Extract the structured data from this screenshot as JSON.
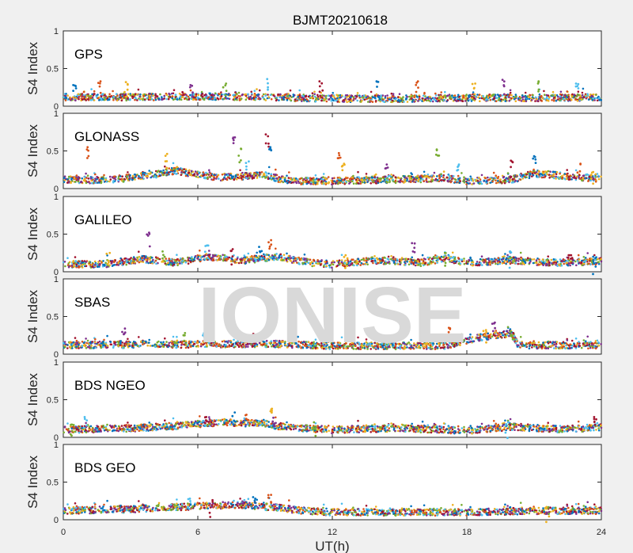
{
  "chart_data": {
    "type": "scatter",
    "title": "BJMT20210618",
    "xlabel": "UT(h)",
    "ylabel": "S4 Index",
    "xlim": [
      0,
      24
    ],
    "ylim": [
      0,
      1
    ],
    "xticks": [
      "0",
      "6",
      "12",
      "18",
      "24"
    ],
    "yticks": [
      "0",
      "0.5",
      "1"
    ],
    "watermark": "IONISE",
    "series_colors": [
      "#0072BD",
      "#D95319",
      "#EDB120",
      "#7E2F8E",
      "#77AC30",
      "#4DBEEE",
      "#A2142F"
    ],
    "panels": [
      {
        "name": "GPS",
        "baseline": [
          [
            0,
            0.12
          ],
          [
            3,
            0.12
          ],
          [
            6,
            0.13
          ],
          [
            9,
            0.12
          ],
          [
            12,
            0.1
          ],
          [
            15,
            0.1
          ],
          [
            18,
            0.11
          ],
          [
            21,
            0.11
          ],
          [
            24,
            0.12
          ]
        ],
        "peaks": [
          [
            0.5,
            0.28
          ],
          [
            1.6,
            0.33
          ],
          [
            2.8,
            0.32
          ],
          [
            5.7,
            0.28
          ],
          [
            7.2,
            0.3
          ],
          [
            9.1,
            0.36
          ],
          [
            11.5,
            0.33
          ],
          [
            14.0,
            0.33
          ],
          [
            15.8,
            0.33
          ],
          [
            18.3,
            0.3
          ],
          [
            19.6,
            0.35
          ],
          [
            21.2,
            0.33
          ],
          [
            22.9,
            0.3
          ]
        ]
      },
      {
        "name": "GLONASS",
        "baseline": [
          [
            0,
            0.12
          ],
          [
            2,
            0.11
          ],
          [
            4,
            0.18
          ],
          [
            5,
            0.24
          ],
          [
            6,
            0.18
          ],
          [
            7,
            0.15
          ],
          [
            9,
            0.18
          ],
          [
            10,
            0.1
          ],
          [
            12,
            0.1
          ],
          [
            15,
            0.12
          ],
          [
            17,
            0.14
          ],
          [
            18,
            0.1
          ],
          [
            20,
            0.12
          ],
          [
            21,
            0.2
          ],
          [
            24,
            0.13
          ]
        ],
        "peaks": [
          [
            1.1,
            0.55
          ],
          [
            4.6,
            0.46
          ],
          [
            7.6,
            0.68
          ],
          [
            7.9,
            0.53
          ],
          [
            8.2,
            0.36
          ],
          [
            9.1,
            0.72
          ],
          [
            9.2,
            0.55
          ],
          [
            12.3,
            0.47
          ],
          [
            12.5,
            0.33
          ],
          [
            14.4,
            0.32
          ],
          [
            16.7,
            0.52
          ],
          [
            17.6,
            0.32
          ],
          [
            20.0,
            0.37
          ],
          [
            21.0,
            0.43
          ],
          [
            23.0,
            0.33
          ],
          [
            23.6,
            0.22
          ]
        ]
      },
      {
        "name": "GALILEO",
        "baseline": [
          [
            0,
            0.1
          ],
          [
            2,
            0.1
          ],
          [
            3.5,
            0.17
          ],
          [
            5,
            0.12
          ],
          [
            6.5,
            0.2
          ],
          [
            8,
            0.15
          ],
          [
            9.5,
            0.2
          ],
          [
            11,
            0.12
          ],
          [
            12,
            0.1
          ],
          [
            14,
            0.15
          ],
          [
            16,
            0.12
          ],
          [
            17,
            0.18
          ],
          [
            18,
            0.12
          ],
          [
            20,
            0.15
          ],
          [
            22,
            0.12
          ],
          [
            24,
            0.14
          ]
        ],
        "peaks": [
          [
            2.0,
            0.25
          ],
          [
            3.8,
            0.52
          ],
          [
            4.5,
            0.27
          ],
          [
            6.4,
            0.35
          ],
          [
            7.5,
            0.3
          ],
          [
            8.8,
            0.33
          ],
          [
            9.2,
            0.42
          ],
          [
            12.6,
            0.22
          ],
          [
            15.6,
            0.38
          ],
          [
            17.0,
            0.25
          ],
          [
            19.9,
            0.27
          ],
          [
            22.6,
            0.22
          ],
          [
            23.7,
            0.2
          ]
        ]
      },
      {
        "name": "SBAS",
        "baseline": [
          [
            0,
            0.12
          ],
          [
            6,
            0.13
          ],
          [
            9,
            0.14
          ],
          [
            12,
            0.11
          ],
          [
            17,
            0.11
          ],
          [
            18.5,
            0.22
          ],
          [
            20,
            0.28
          ],
          [
            20.3,
            0.12
          ],
          [
            24,
            0.12
          ]
        ],
        "peaks": [
          [
            2.7,
            0.34
          ],
          [
            5.4,
            0.28
          ],
          [
            6.3,
            0.3
          ],
          [
            8.5,
            0.27
          ],
          [
            10.4,
            0.23
          ],
          [
            17.2,
            0.35
          ],
          [
            18.8,
            0.32
          ],
          [
            19.2,
            0.42
          ],
          [
            20.0,
            0.3
          ]
        ]
      },
      {
        "name": "BDS NGEO",
        "baseline": [
          [
            0,
            0.1
          ],
          [
            3,
            0.12
          ],
          [
            5,
            0.15
          ],
          [
            7,
            0.2
          ],
          [
            9,
            0.18
          ],
          [
            10,
            0.13
          ],
          [
            12,
            0.1
          ],
          [
            15,
            0.12
          ],
          [
            18,
            0.09
          ],
          [
            20,
            0.14
          ],
          [
            22,
            0.11
          ],
          [
            24,
            0.13
          ]
        ],
        "peaks": [
          [
            0.4,
            0.17
          ],
          [
            1.0,
            0.27
          ],
          [
            6.4,
            0.27
          ],
          [
            7.6,
            0.33
          ],
          [
            8.2,
            0.3
          ],
          [
            9.3,
            0.38
          ],
          [
            9.4,
            0.26
          ],
          [
            11.2,
            0.2
          ],
          [
            19.8,
            0.2
          ],
          [
            23.7,
            0.27
          ]
        ]
      },
      {
        "name": "BDS GEO",
        "baseline": [
          [
            0,
            0.12
          ],
          [
            3,
            0.14
          ],
          [
            6,
            0.18
          ],
          [
            8,
            0.2
          ],
          [
            9.5,
            0.16
          ],
          [
            10.7,
            0.12
          ],
          [
            12,
            0.1
          ],
          [
            18,
            0.1
          ],
          [
            21,
            0.12
          ],
          [
            24,
            0.12
          ]
        ],
        "peaks": [
          [
            5.6,
            0.28
          ],
          [
            6.6,
            0.26
          ],
          [
            8.5,
            0.3
          ],
          [
            9.2,
            0.33
          ],
          [
            21.6,
            0.17
          ]
        ]
      }
    ]
  }
}
